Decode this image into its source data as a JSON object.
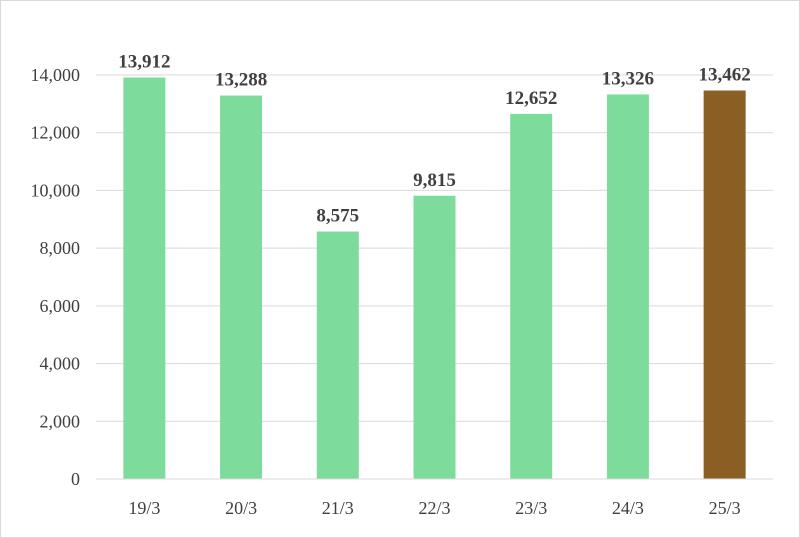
{
  "chart_data": {
    "type": "bar",
    "categories": [
      "19/3",
      "20/3",
      "21/3",
      "22/3",
      "23/3",
      "24/3",
      "25/3"
    ],
    "values": [
      13912,
      13288,
      8575,
      9815,
      12652,
      13326,
      13462
    ],
    "data_labels": [
      "13,912",
      "13,288",
      "8,575",
      "9,815",
      "12,652",
      "13,326",
      "13,462"
    ],
    "ylim": [
      0,
      14000
    ],
    "yticks": [
      0,
      2000,
      4000,
      6000,
      8000,
      10000,
      12000,
      14000
    ],
    "ytick_labels": [
      "0",
      "2,000",
      "4,000",
      "6,000",
      "8,000",
      "10,000",
      "12,000",
      "14,000"
    ],
    "grid": true,
    "colors": {
      "default_bar": "#7ddc9b",
      "highlight_bar": "#8b5e24",
      "highlight_index": 6
    }
  }
}
